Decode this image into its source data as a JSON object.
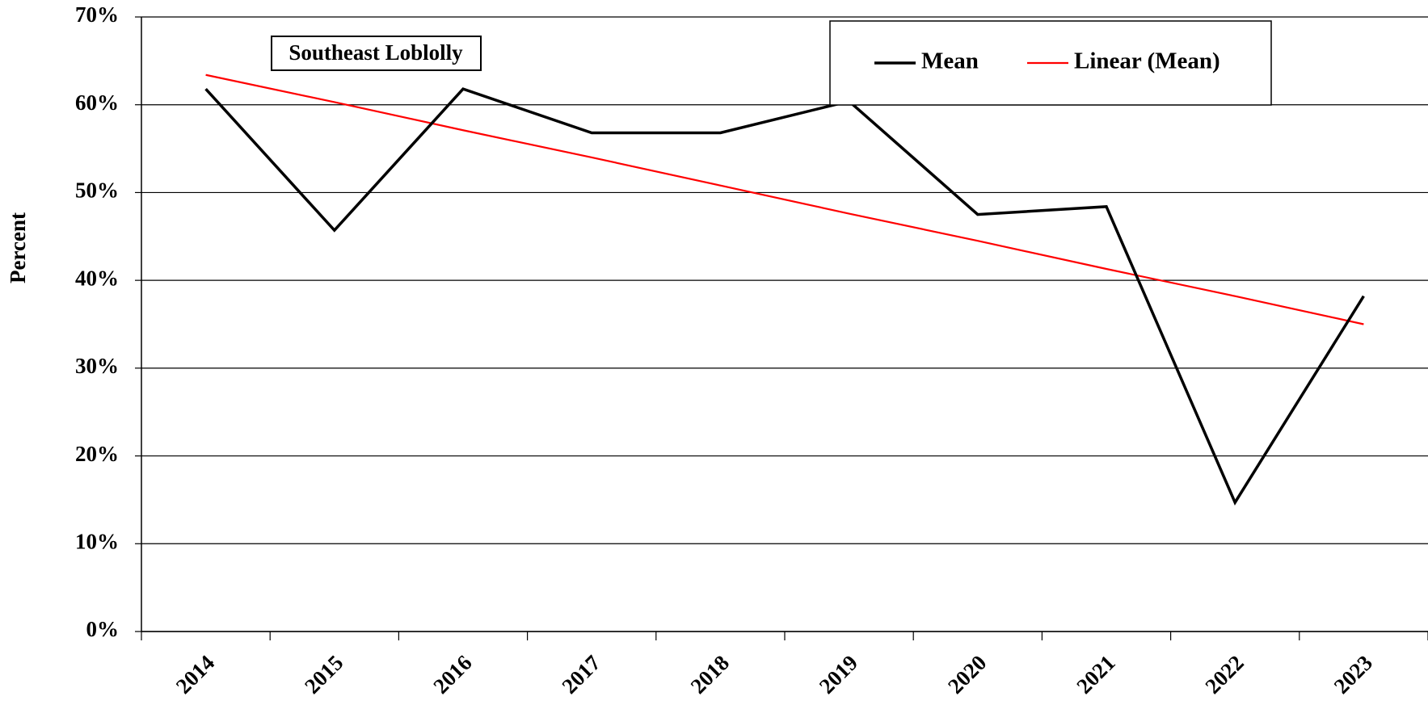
{
  "chart_data": {
    "type": "line",
    "annotation": "Southeast Loblolly",
    "y_label": "Percent",
    "categories": [
      "2014",
      "2015",
      "2016",
      "2017",
      "2018",
      "2019",
      "2020",
      "2021",
      "2022",
      "2023"
    ],
    "series": [
      {
        "name": "Mean",
        "color": "#000000",
        "values": [
          61.8,
          45.7,
          61.8,
          56.8,
          56.8,
          60.4,
          47.5,
          48.4,
          14.7,
          38.2
        ]
      },
      {
        "name": "Linear (Mean)",
        "color": "#ff0000",
        "values": [
          63.4,
          60.3,
          57.1,
          54.0,
          50.8,
          47.6,
          44.5,
          41.3,
          38.2,
          35.0
        ]
      }
    ],
    "ylim": [
      0,
      70
    ],
    "yticks": [
      {
        "value": 0,
        "label": "0%"
      },
      {
        "value": 10,
        "label": "10%"
      },
      {
        "value": 20,
        "label": "20%"
      },
      {
        "value": 30,
        "label": "30%"
      },
      {
        "value": 40,
        "label": "40%"
      },
      {
        "value": 50,
        "label": "50%"
      },
      {
        "value": 60,
        "label": "60%"
      },
      {
        "value": 70,
        "label": "70%"
      }
    ],
    "grid": true
  }
}
